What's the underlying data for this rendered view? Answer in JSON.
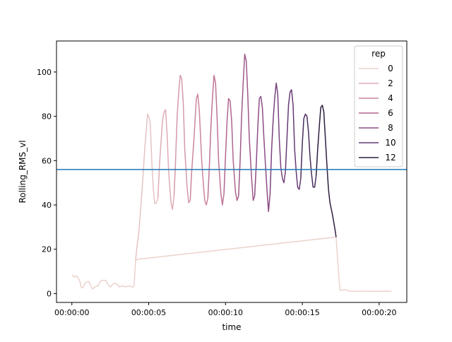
{
  "chart_data": {
    "type": "line",
    "xlabel": "time",
    "ylabel": "Rolling_RMS_vl",
    "xlim": [
      -1.0,
      21.8
    ],
    "ylim": [
      -4,
      114
    ],
    "x_ticks": [
      {
        "value": 0,
        "label": "00:00:00"
      },
      {
        "value": 5,
        "label": "00:00:05"
      },
      {
        "value": 10,
        "label": "00:00:10"
      },
      {
        "value": 15,
        "label": "00:00:15"
      },
      {
        "value": 20,
        "label": "00:00:20"
      }
    ],
    "y_ticks": [
      0,
      20,
      40,
      60,
      80,
      100
    ],
    "hline": {
      "y": 56,
      "color": "#1f77b4"
    },
    "legend": {
      "title": "rep",
      "position": "top-right",
      "entries": [
        {
          "label": "0",
          "color": "#ebd2cc"
        },
        {
          "label": "2",
          "color": "#ddacb6"
        },
        {
          "label": "4",
          "color": "#cb859d"
        },
        {
          "label": "6",
          "color": "#b0658e"
        },
        {
          "label": "8",
          "color": "#8d4c86"
        },
        {
          "label": "10",
          "color": "#643a74"
        },
        {
          "label": "12",
          "color": "#2d1e3e"
        }
      ]
    },
    "series": [
      {
        "rep": 0,
        "color": "#ebd2cc",
        "points": [
          [
            0.0,
            8.5
          ],
          [
            0.15,
            7.5
          ],
          [
            0.3,
            8
          ],
          [
            0.5,
            6
          ],
          [
            0.6,
            3
          ],
          [
            0.7,
            2.5
          ],
          [
            0.9,
            5
          ],
          [
            1.1,
            5.5
          ],
          [
            1.2,
            4
          ],
          [
            1.35,
            2
          ],
          [
            1.5,
            3
          ],
          [
            1.7,
            3.5
          ],
          [
            1.85,
            5.5
          ],
          [
            2.0,
            6
          ],
          [
            2.2,
            6
          ],
          [
            2.35,
            4
          ],
          [
            2.5,
            3
          ],
          [
            2.7,
            4.5
          ],
          [
            2.9,
            4.5
          ],
          [
            3.1,
            3
          ],
          [
            3.3,
            3.5
          ],
          [
            3.5,
            3
          ],
          [
            3.7,
            3.5
          ],
          [
            3.9,
            3
          ],
          [
            4.0,
            3
          ],
          [
            4.05,
            3.5
          ],
          [
            4.15,
            15
          ],
          [
            4.3,
            15.5
          ],
          [
            17.2,
            25.5
          ],
          [
            17.35,
            10
          ],
          [
            17.45,
            1.5
          ],
          [
            17.6,
            1.5
          ],
          [
            17.8,
            1.8
          ],
          [
            18.0,
            1.2
          ],
          [
            18.5,
            1
          ],
          [
            19,
            1.1
          ],
          [
            19.5,
            1
          ],
          [
            20,
            1
          ],
          [
            20.4,
            1.1
          ],
          [
            20.8,
            1
          ]
        ]
      },
      {
        "rep": 1,
        "color": "#e5c3c5",
        "points": [
          [
            4.15,
            15
          ],
          [
            4.25,
            22
          ],
          [
            4.35,
            27
          ],
          [
            4.5,
            40
          ],
          [
            4.65,
            55
          ],
          [
            4.75,
            66
          ],
          [
            4.85,
            74
          ],
          [
            4.92,
            81
          ],
          [
            5.0,
            80
          ],
          [
            5.1,
            77
          ],
          [
            5.2,
            60
          ],
          [
            5.3,
            47
          ],
          [
            5.4,
            40.5
          ],
          [
            5.5,
            41
          ],
          [
            5.6,
            43
          ]
        ]
      },
      {
        "rep": 2,
        "color": "#ddacb6",
        "points": [
          [
            5.6,
            43
          ],
          [
            5.7,
            58
          ],
          [
            5.8,
            68
          ],
          [
            5.9,
            78
          ],
          [
            6.0,
            82
          ],
          [
            6.1,
            83
          ],
          [
            6.2,
            72
          ],
          [
            6.3,
            55
          ],
          [
            6.45,
            41
          ],
          [
            6.55,
            38
          ],
          [
            6.65,
            44
          ]
        ]
      },
      {
        "rep": 3,
        "color": "#d499a9",
        "points": [
          [
            6.65,
            44
          ],
          [
            6.75,
            60
          ],
          [
            6.85,
            80
          ],
          [
            6.95,
            90
          ],
          [
            7.05,
            98.5
          ],
          [
            7.15,
            97
          ],
          [
            7.25,
            86
          ],
          [
            7.35,
            65
          ],
          [
            7.5,
            48
          ],
          [
            7.6,
            41
          ],
          [
            7.7,
            42
          ]
        ]
      },
      {
        "rep": 4,
        "color": "#cb859d",
        "points": [
          [
            7.7,
            42
          ],
          [
            7.8,
            55
          ],
          [
            7.95,
            70
          ],
          [
            8.1,
            88
          ],
          [
            8.2,
            90
          ],
          [
            8.3,
            82
          ],
          [
            8.45,
            60
          ],
          [
            8.55,
            50
          ],
          [
            8.65,
            42
          ],
          [
            8.75,
            40
          ],
          [
            8.85,
            43
          ]
        ]
      },
      {
        "rep": 5,
        "color": "#bd7495",
        "points": [
          [
            8.85,
            43
          ],
          [
            8.95,
            58
          ],
          [
            9.05,
            75
          ],
          [
            9.15,
            88
          ],
          [
            9.25,
            98.5
          ],
          [
            9.35,
            95
          ],
          [
            9.45,
            80
          ],
          [
            9.55,
            60
          ],
          [
            9.7,
            45
          ],
          [
            9.8,
            40
          ],
          [
            9.9,
            45
          ]
        ]
      },
      {
        "rep": 6,
        "color": "#b0658e",
        "points": [
          [
            9.9,
            45
          ],
          [
            10.0,
            62
          ],
          [
            10.1,
            78
          ],
          [
            10.2,
            88
          ],
          [
            10.3,
            87
          ],
          [
            10.4,
            78
          ],
          [
            10.5,
            60
          ],
          [
            10.65,
            46
          ],
          [
            10.75,
            42
          ],
          [
            10.85,
            44
          ]
        ]
      },
      {
        "rep": 7,
        "color": "#9e5889",
        "points": [
          [
            10.85,
            44
          ],
          [
            10.95,
            60
          ],
          [
            11.05,
            80
          ],
          [
            11.15,
            95
          ],
          [
            11.25,
            108
          ],
          [
            11.35,
            105
          ],
          [
            11.45,
            90
          ],
          [
            11.55,
            70
          ],
          [
            11.7,
            52
          ],
          [
            11.8,
            42
          ],
          [
            11.9,
            44
          ]
        ]
      },
      {
        "rep": 8,
        "color": "#8d4c86",
        "points": [
          [
            11.9,
            44
          ],
          [
            12.0,
            58
          ],
          [
            12.1,
            75
          ],
          [
            12.2,
            88
          ],
          [
            12.3,
            89
          ],
          [
            12.4,
            84
          ],
          [
            12.5,
            70
          ],
          [
            12.6,
            58
          ],
          [
            12.7,
            47
          ],
          [
            12.8,
            37
          ],
          [
            12.9,
            45
          ]
        ]
      },
      {
        "rep": 9,
        "color": "#79437e",
        "points": [
          [
            12.9,
            45
          ],
          [
            13.0,
            65
          ],
          [
            13.1,
            78
          ],
          [
            13.2,
            88
          ],
          [
            13.3,
            95
          ],
          [
            13.4,
            90
          ],
          [
            13.5,
            70
          ],
          [
            13.6,
            57
          ],
          [
            13.7,
            52
          ],
          [
            13.8,
            50
          ],
          [
            13.9,
            55
          ]
        ]
      },
      {
        "rep": 10,
        "color": "#643a74",
        "points": [
          [
            13.9,
            55
          ],
          [
            14.0,
            70
          ],
          [
            14.1,
            85
          ],
          [
            14.2,
            91
          ],
          [
            14.3,
            92
          ],
          [
            14.4,
            85
          ],
          [
            14.5,
            65
          ],
          [
            14.6,
            55
          ],
          [
            14.7,
            48
          ],
          [
            14.8,
            47
          ],
          [
            14.9,
            52
          ]
        ]
      },
      {
        "rep": 11,
        "color": "#492c5c",
        "points": [
          [
            14.9,
            52
          ],
          [
            15.0,
            68
          ],
          [
            15.1,
            79
          ],
          [
            15.2,
            81
          ],
          [
            15.3,
            80
          ],
          [
            15.4,
            73
          ],
          [
            15.5,
            62
          ],
          [
            15.6,
            54
          ],
          [
            15.7,
            48
          ],
          [
            15.8,
            48
          ],
          [
            15.9,
            53
          ]
        ]
      },
      {
        "rep": 12,
        "color": "#2d1e3e",
        "points": [
          [
            15.9,
            53
          ],
          [
            16.0,
            65
          ],
          [
            16.1,
            75
          ],
          [
            16.2,
            84
          ],
          [
            16.3,
            85
          ],
          [
            16.4,
            82
          ],
          [
            16.5,
            70
          ],
          [
            16.6,
            58
          ],
          [
            16.7,
            47
          ],
          [
            16.8,
            41
          ],
          [
            16.95,
            36
          ],
          [
            17.05,
            32
          ],
          [
            17.15,
            28
          ],
          [
            17.2,
            25.5
          ]
        ]
      }
    ]
  }
}
